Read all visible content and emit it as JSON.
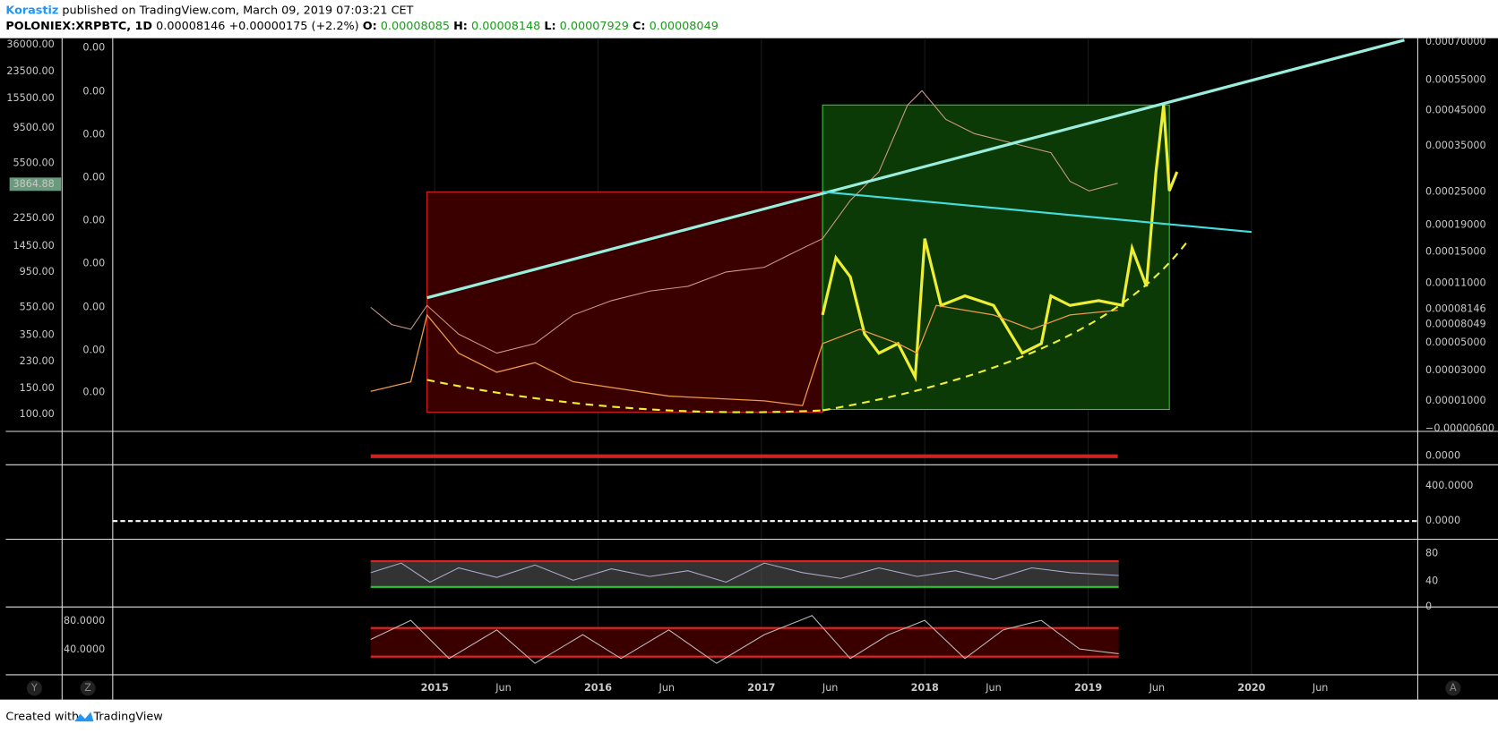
{
  "header": {
    "author": "Korastiz",
    "published": "published on TradingView.com, March 09, 2019 07:03:21 CET",
    "symbol": "POLONIEX:XRPBTC, 1D",
    "last": "0.00008146",
    "change": "+0.00000175 (+2.2%)",
    "open_label": "O:",
    "open": "0.00008085",
    "high_label": "H:",
    "high": "0.00008148",
    "low_label": "L:",
    "low": "0.00007929",
    "close_label": "C:",
    "close": "0.00008049"
  },
  "left_axis": [
    "36000.00",
    "23500.00",
    "15500.00",
    "9500.00",
    "5500.00",
    "3864.88",
    "2250.00",
    "1450.00",
    "950.00",
    "550.00",
    "350.00",
    "230.00",
    "150.00",
    "100.00"
  ],
  "inner_axis": [
    "0.00",
    "0.00",
    "0.00",
    "0.00",
    "0.00",
    "0.00",
    "0.00",
    "0.00",
    "0.00"
  ],
  "right_axis": [
    "0.00070000",
    "0.00055000",
    "0.00045000",
    "0.00035000",
    "0.00025000",
    "0.00019000",
    "0.00015000",
    "0.00011000",
    "0.00008146",
    "0.00008049",
    "0.00005000",
    "0.00003000",
    "0.00001000",
    "−0.00000600"
  ],
  "pane2_axis": [
    "0.0000"
  ],
  "pane3_axis": [
    "400.0000",
    "0.0000"
  ],
  "pane4_axis": [
    "80",
    "40",
    "0"
  ],
  "pane5_axis": [
    "80.0000",
    "40.0000"
  ],
  "time_axis": [
    "2015",
    "Jun",
    "2016",
    "Jun",
    "2017",
    "Jun",
    "2018",
    "Jun",
    "2019",
    "Jun",
    "2020",
    "Jun"
  ],
  "buttons": [
    "Y",
    "Z",
    "A"
  ],
  "footer": {
    "created": "Created with",
    "brand": "TradingView"
  }
}
